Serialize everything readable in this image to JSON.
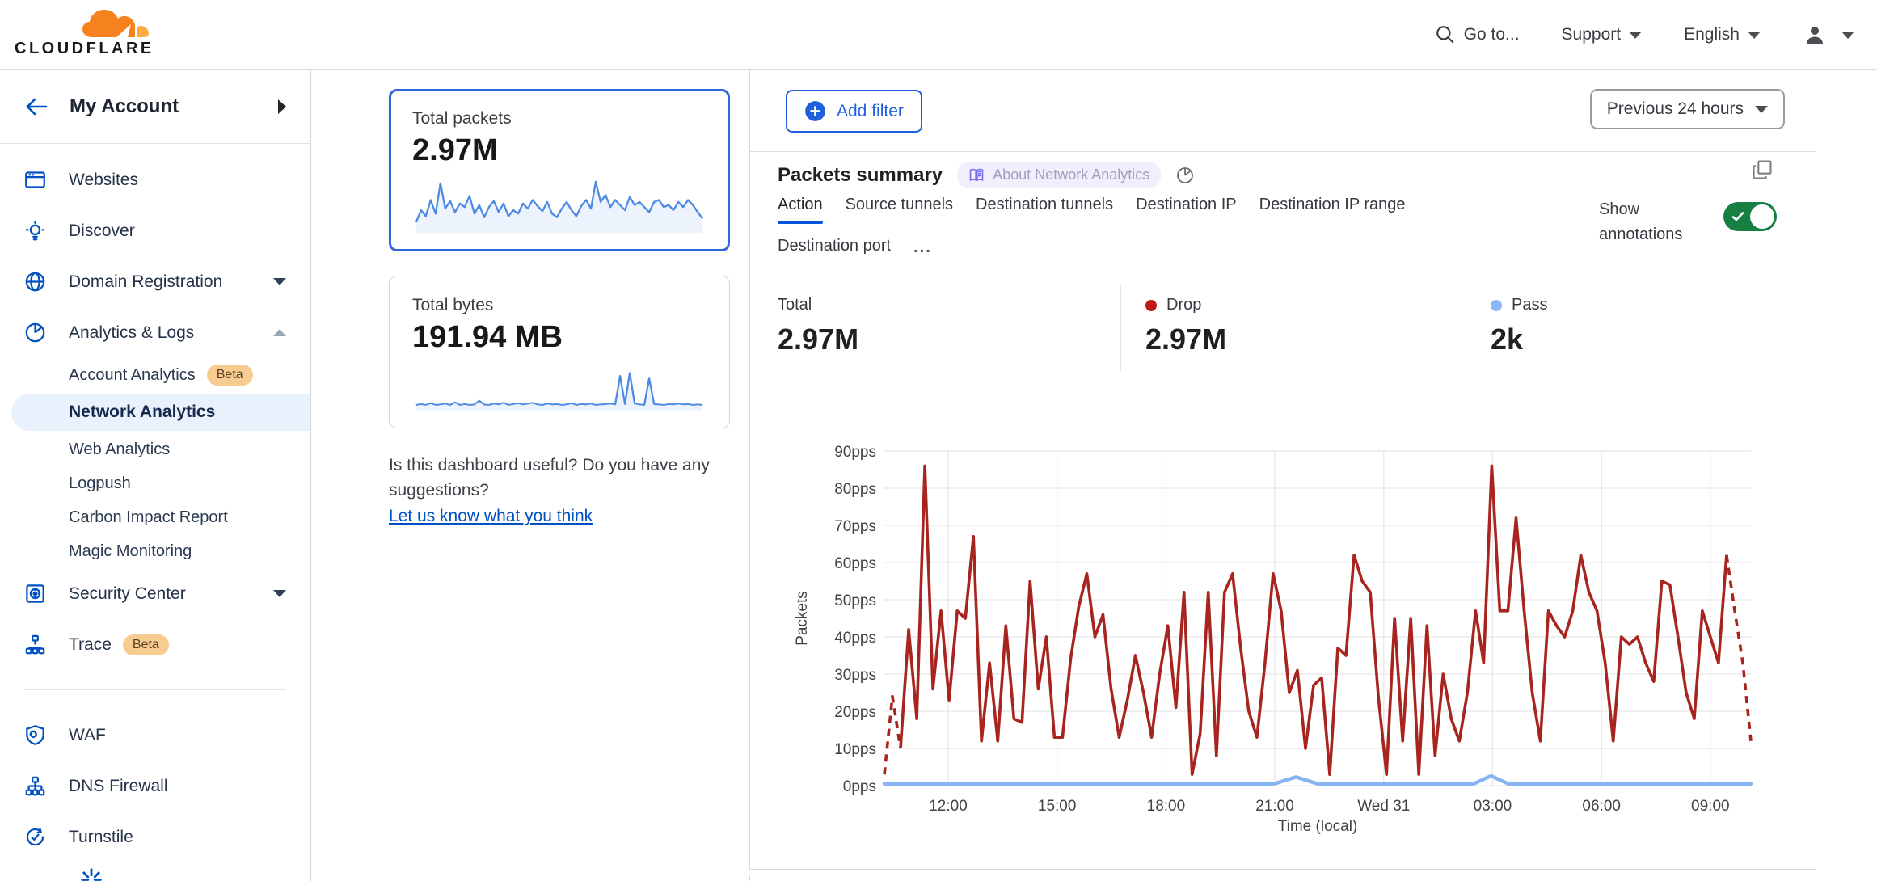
{
  "header": {
    "logo_text": "CLOUDFLARE",
    "go_to": "Go to...",
    "support": "Support",
    "language": "English"
  },
  "sidebar": {
    "account_label": "My Account",
    "items": [
      {
        "label": "Websites",
        "icon": "browser-icon"
      },
      {
        "label": "Discover",
        "icon": "lightbulb-icon"
      },
      {
        "label": "Domain Registration",
        "icon": "globe-icon",
        "caret": "down"
      },
      {
        "label": "Analytics & Logs",
        "icon": "pie-chart-icon",
        "caret": "up",
        "expanded": true
      }
    ],
    "analytics_children": [
      {
        "label": "Account Analytics",
        "badge": "Beta"
      },
      {
        "label": "Network Analytics",
        "active": true
      },
      {
        "label": "Web Analytics"
      },
      {
        "label": "Logpush"
      },
      {
        "label": "Carbon Impact Report"
      },
      {
        "label": "Magic Monitoring"
      }
    ],
    "items2": [
      {
        "label": "Security Center",
        "icon": "safe-icon",
        "caret": "down"
      },
      {
        "label": "Trace",
        "icon": "trace-icon",
        "badge": "Beta"
      }
    ],
    "items3": [
      {
        "label": "WAF",
        "icon": "shield-gear-icon"
      },
      {
        "label": "DNS Firewall",
        "icon": "hierarchy-icon"
      },
      {
        "label": "Turnstile",
        "icon": "refresh-check-icon"
      }
    ]
  },
  "summary_cards": [
    {
      "title": "Total packets",
      "value": "2.97M",
      "selected": true,
      "spark": [
        18,
        42,
        30,
        62,
        35,
        95,
        45,
        60,
        38,
        55,
        48,
        70,
        35,
        52,
        28,
        48,
        60,
        38,
        55,
        30,
        42,
        35,
        55,
        45,
        62,
        50,
        40,
        58,
        35,
        28,
        45,
        58,
        42,
        30,
        50,
        62,
        45,
        98,
        58,
        72,
        48,
        62,
        52,
        42,
        68,
        52,
        58,
        48,
        38,
        58,
        62,
        48,
        52,
        42,
        58,
        48,
        62,
        52,
        38,
        25
      ]
    },
    {
      "title": "Total bytes",
      "value": "191.94 MB",
      "selected": false,
      "spark": [
        10,
        12,
        10,
        14,
        10,
        11,
        13,
        10,
        16,
        10,
        12,
        10,
        11,
        20,
        11,
        10,
        13,
        11,
        15,
        10,
        12,
        14,
        11,
        13,
        15,
        11,
        10,
        13,
        11,
        12,
        10,
        11,
        14,
        10,
        12,
        11,
        13,
        10,
        11,
        12,
        13,
        11,
        78,
        12,
        85,
        13,
        11,
        10,
        72,
        12,
        11,
        10,
        12,
        11,
        13,
        11,
        12,
        10,
        11,
        10
      ]
    }
  ],
  "feedback": {
    "question": "Is this dashboard useful? Do you have any suggestions?",
    "link": "Let us know what you think"
  },
  "toolbar": {
    "add_filter": "Add filter",
    "time_range": "Previous 24 hours"
  },
  "panel": {
    "title": "Packets summary",
    "about_badge": "About Network Analytics",
    "tabs": [
      "Action",
      "Source tunnels",
      "Destination tunnels",
      "Destination IP",
      "Destination IP range",
      "Destination port"
    ],
    "active_tab": "Action",
    "more_tabs": "...",
    "show_annotations": "Show annotations",
    "annotations_on": true,
    "stats": [
      {
        "label": "Total",
        "value": "2.97M",
        "dot": null
      },
      {
        "label": "Drop",
        "value": "2.97M",
        "dot": "#c01818"
      },
      {
        "label": "Pass",
        "value": "2k",
        "dot": "#8ab7f7"
      }
    ]
  },
  "chart_data": {
    "type": "line",
    "title": "Packets summary",
    "xlabel": "Time (local)",
    "ylabel": "Packets",
    "ylim": [
      0,
      90
    ],
    "grid": true,
    "legend_position": "top-stats",
    "yticks": [
      "0pps",
      "10pps",
      "20pps",
      "30pps",
      "40pps",
      "50pps",
      "60pps",
      "70pps",
      "80pps",
      "90pps"
    ],
    "xticks": [
      {
        "label": "12:00",
        "f": 0.0737
      },
      {
        "label": "15:00",
        "f": 0.1993
      },
      {
        "label": "18:00",
        "f": 0.325
      },
      {
        "label": "21:00",
        "f": 0.4506
      },
      {
        "label": "Wed 31",
        "f": 0.5763
      },
      {
        "label": "03:00",
        "f": 0.7019
      },
      {
        "label": "06:00",
        "f": 0.8276
      },
      {
        "label": "09:00",
        "f": 0.9532
      }
    ],
    "series": [
      {
        "name": "Drop",
        "color": "#a8241f",
        "dash_head": 3,
        "dash_tail": 4,
        "values": [
          3,
          24,
          10,
          42,
          18,
          86,
          26,
          47,
          23,
          47,
          45,
          67,
          12,
          33,
          12,
          43,
          18,
          17,
          55,
          26,
          40,
          13,
          13,
          34,
          48,
          57,
          40,
          46,
          26,
          13,
          23,
          35,
          25,
          13,
          30,
          43,
          21,
          52,
          3,
          14,
          52,
          8,
          52,
          57,
          37,
          20,
          13,
          33,
          57,
          47,
          25,
          31,
          10,
          27,
          29,
          3,
          37,
          35,
          62,
          55,
          52,
          24,
          3,
          45,
          12,
          45,
          3,
          43,
          8,
          30,
          18,
          12,
          25,
          47,
          33,
          86,
          47,
          47,
          72,
          47,
          25,
          12,
          47,
          43,
          40,
          47,
          62,
          52,
          47,
          33,
          12,
          40,
          38,
          40,
          33,
          28,
          55,
          54,
          40,
          25,
          18,
          47,
          40,
          33,
          62,
          47,
          33,
          12
        ]
      },
      {
        "name": "Pass",
        "color": "#88b4f2",
        "points": [
          [
            0,
            0.5
          ],
          [
            0.45,
            0.5
          ],
          [
            0.475,
            2.3
          ],
          [
            0.5,
            0.5
          ],
          [
            0.68,
            0.5
          ],
          [
            0.7,
            2.6
          ],
          [
            0.72,
            0.5
          ],
          [
            1,
            0.5
          ]
        ]
      }
    ]
  },
  "colors": {
    "brand_orange": "#f6821f",
    "link_blue": "#0051c3",
    "accent_blue": "#2060df",
    "selected_card_border": "#3068e0",
    "active_tab_underline": "#0055dc",
    "drop_red": "#a8241f",
    "drop_dot": "#c01818",
    "pass_blue": "#88b4f2",
    "toggle_green": "#187f43",
    "beta_badge_bg": "#f8cb90",
    "about_pill_bg": "#f1effc"
  }
}
